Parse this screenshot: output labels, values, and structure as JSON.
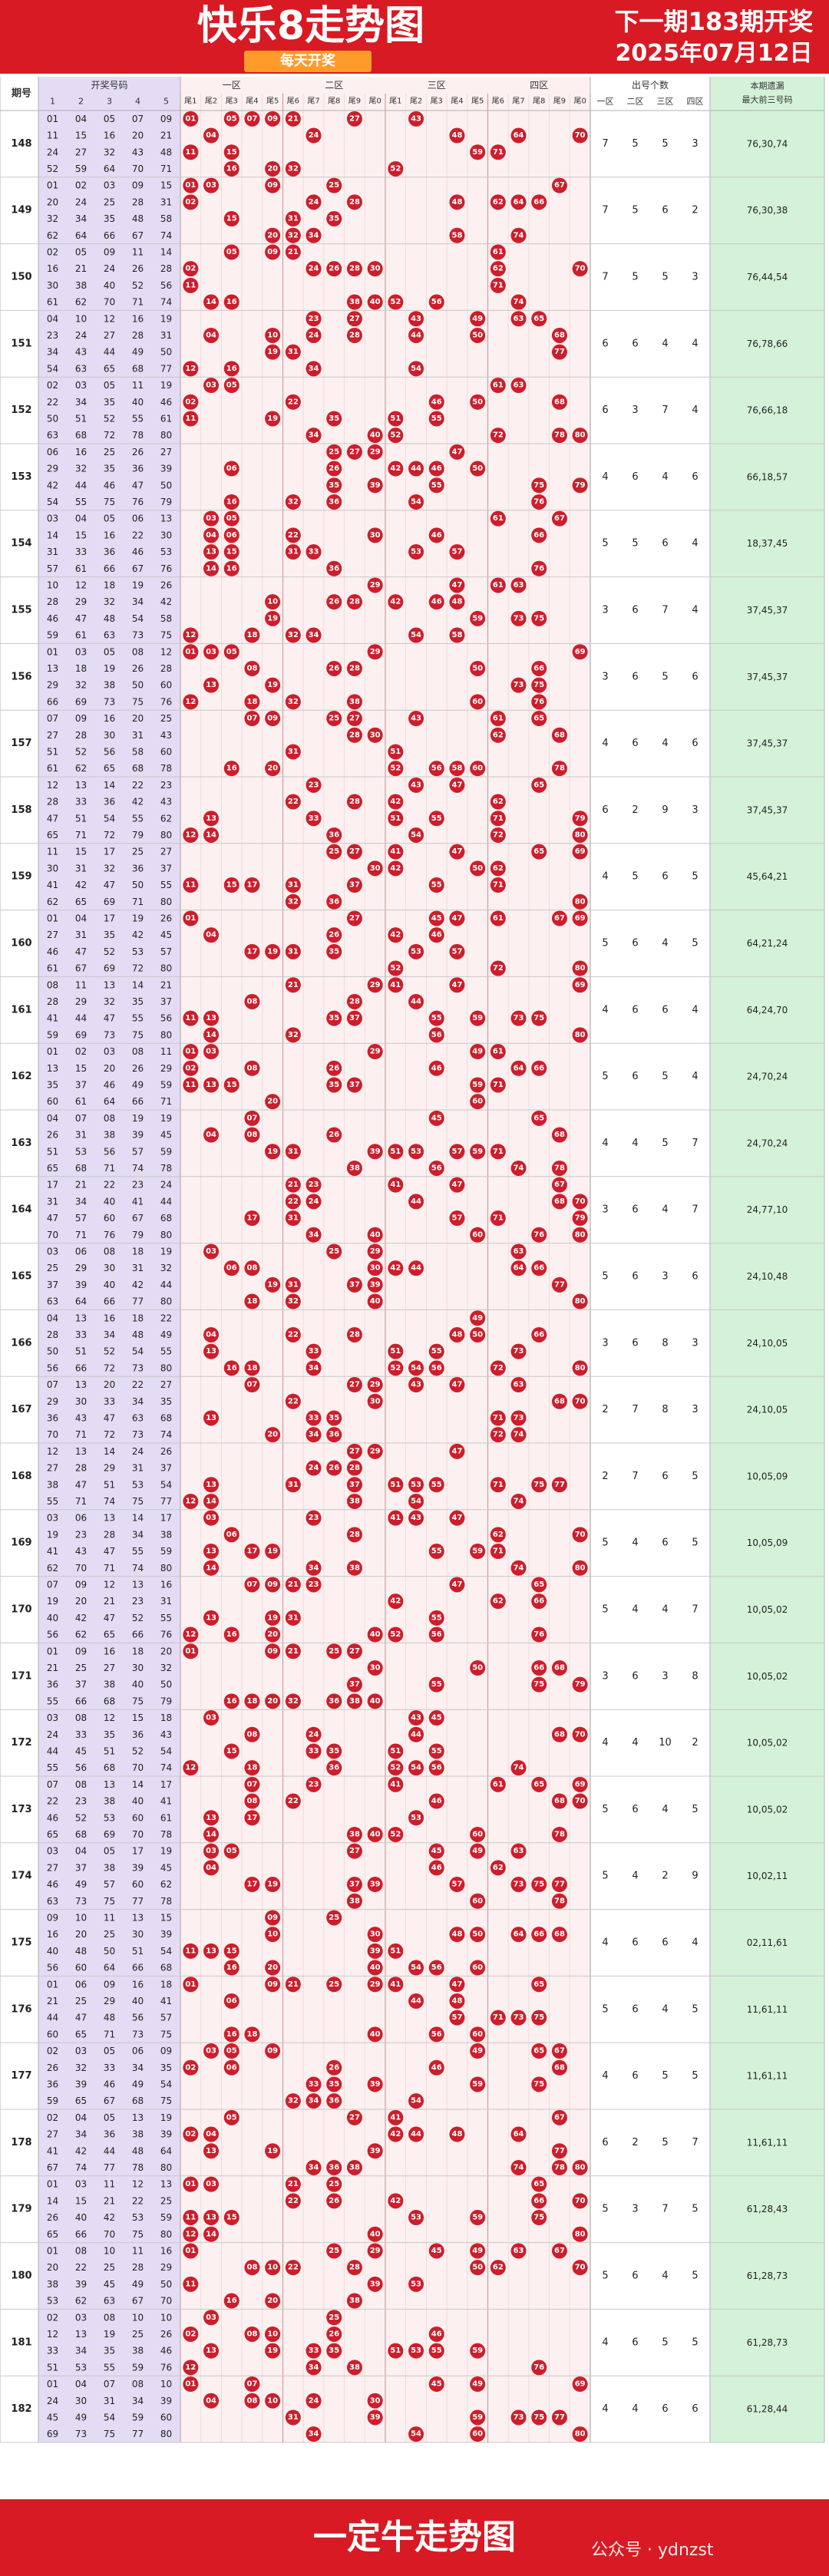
{
  "header": {
    "title": "快乐8走势图",
    "subtitle": "每天开奖",
    "next_issue": "下一期183期开奖",
    "date": "2025年07月12日"
  },
  "footer": {
    "title": "一定牛走势图",
    "watermark": "公众号 · ydnzst"
  },
  "table_headers": {
    "issue": "期号",
    "draw_numbers": "开奖号码",
    "draw_cols": [
      "1",
      "2",
      "3",
      "4",
      "5"
    ],
    "zones": [
      "一区",
      "二区",
      "三区",
      "四区"
    ],
    "tails": [
      "尾1",
      "尾2",
      "尾3",
      "尾4",
      "尾5",
      "尾6",
      "尾7",
      "尾8",
      "尾9",
      "尾0"
    ],
    "count_title": "出号个数",
    "count_cols": [
      "一区",
      "二区",
      "三区",
      "四区"
    ],
    "remain_title": "本期遗漏最大前三号码"
  },
  "colors": {
    "brand_red": "#d81a24",
    "ball": "#cc1e2b",
    "draw_bg": "#e3dcf4",
    "grid_bg": "#fdf0f0",
    "remain_bg": "#d4f2d8",
    "subtitle_bg": "#ff9b2b"
  },
  "chart_data": {
    "type": "table",
    "rows": [
      {
        "issue": "148",
        "numbers": [
          1,
          4,
          5,
          7,
          9,
          11,
          15,
          16,
          20,
          21,
          24,
          27,
          32,
          43,
          48,
          52,
          59,
          64,
          70,
          71
        ],
        "counts": [
          7,
          5,
          5,
          3
        ],
        "remain": "76,30,74"
      },
      {
        "issue": "149",
        "numbers": [
          1,
          2,
          3,
          9,
          15,
          20,
          24,
          25,
          28,
          31,
          32,
          34,
          35,
          48,
          58,
          62,
          64,
          66,
          67,
          74
        ],
        "counts": [
          7,
          5,
          6,
          2
        ],
        "remain": "76,30,38"
      },
      {
        "issue": "150",
        "numbers": [
          2,
          5,
          9,
          11,
          14,
          16,
          21,
          24,
          26,
          28,
          30,
          38,
          40,
          52,
          56,
          61,
          62,
          70,
          71,
          74
        ],
        "counts": [
          7,
          5,
          5,
          3
        ],
        "remain": "76,44,54"
      },
      {
        "issue": "151",
        "numbers": [
          4,
          10,
          12,
          16,
          19,
          23,
          24,
          27,
          28,
          31,
          34,
          43,
          44,
          49,
          50,
          54,
          63,
          65,
          68,
          77
        ],
        "counts": [
          6,
          6,
          4,
          4
        ],
        "remain": "76,78,66"
      },
      {
        "issue": "152",
        "numbers": [
          2,
          3,
          5,
          11,
          19,
          22,
          34,
          35,
          40,
          50,
          51,
          55,
          61,
          63,
          68,
          72,
          78,
          80,
          46,
          52
        ],
        "counts": [
          6,
          3,
          7,
          4
        ],
        "remain": "76,66,18"
      },
      {
        "issue": "153",
        "numbers": [
          6,
          16,
          25,
          26,
          29,
          35,
          27,
          32,
          36,
          39,
          42,
          44,
          46,
          47,
          50,
          54,
          55,
          75,
          76,
          79
        ],
        "counts": [
          4,
          6,
          4,
          6
        ],
        "remain": "66,18,57"
      },
      {
        "issue": "154",
        "numbers": [
          3,
          4,
          5,
          6,
          13,
          14,
          15,
          16,
          22,
          30,
          31,
          33,
          36,
          46,
          53,
          57,
          61,
          66,
          67,
          76
        ],
        "counts": [
          5,
          5,
          6,
          4
        ],
        "remain": "18,37,45"
      },
      {
        "issue": "155",
        "numbers": [
          10,
          12,
          18,
          19,
          26,
          28,
          29,
          32,
          34,
          42,
          46,
          47,
          48,
          54,
          58,
          59,
          61,
          63,
          73,
          75
        ],
        "counts": [
          3,
          6,
          7,
          4
        ],
        "remain": "37,45,37"
      },
      {
        "issue": "156",
        "numbers": [
          1,
          3,
          5,
          8,
          12,
          13,
          18,
          19,
          26,
          28,
          29,
          32,
          38,
          50,
          60,
          66,
          69,
          73,
          75,
          76
        ],
        "counts": [
          3,
          6,
          5,
          6
        ],
        "remain": "37,45,37"
      },
      {
        "issue": "157",
        "numbers": [
          7,
          9,
          16,
          20,
          25,
          27,
          28,
          30,
          31,
          43,
          51,
          52,
          56,
          58,
          60,
          61,
          62,
          65,
          68,
          78
        ],
        "counts": [
          4,
          6,
          4,
          6
        ],
        "remain": "37,45,37"
      },
      {
        "issue": "158",
        "numbers": [
          12,
          13,
          14,
          22,
          23,
          28,
          33,
          36,
          42,
          43,
          47,
          51,
          54,
          55,
          62,
          65,
          71,
          72,
          79,
          80
        ],
        "counts": [
          6,
          2,
          9,
          3
        ],
        "remain": "37,45,37"
      },
      {
        "issue": "159",
        "numbers": [
          11,
          15,
          17,
          25,
          27,
          30,
          31,
          32,
          36,
          37,
          41,
          42,
          47,
          50,
          55,
          62,
          65,
          69,
          71,
          80
        ],
        "counts": [
          4,
          5,
          6,
          5
        ],
        "remain": "45,64,21"
      },
      {
        "issue": "160",
        "numbers": [
          1,
          4,
          17,
          19,
          26,
          27,
          31,
          35,
          42,
          45,
          46,
          47,
          52,
          57,
          61,
          67,
          69,
          72,
          80,
          53
        ],
        "counts": [
          5,
          6,
          4,
          5
        ],
        "remain": "64,21,24"
      },
      {
        "issue": "161",
        "numbers": [
          8,
          11,
          14,
          21,
          28,
          29,
          35,
          37,
          41,
          44,
          47,
          55,
          56,
          59,
          69,
          73,
          75,
          80,
          32,
          13
        ],
        "counts": [
          4,
          6,
          6,
          4
        ],
        "remain": "64,24,70"
      },
      {
        "issue": "162",
        "numbers": [
          1,
          2,
          3,
          8,
          11,
          13,
          15,
          20,
          26,
          29,
          35,
          37,
          46,
          49,
          59,
          60,
          61,
          64,
          66,
          71
        ],
        "counts": [
          5,
          6,
          5,
          4
        ],
        "remain": "24,70,24"
      },
      {
        "issue": "163",
        "numbers": [
          4,
          7,
          8,
          19,
          26,
          31,
          38,
          39,
          45,
          51,
          53,
          56,
          57,
          59,
          65,
          68,
          71,
          74,
          78,
          19
        ],
        "counts": [
          4,
          4,
          5,
          7
        ],
        "remain": "24,70,24"
      },
      {
        "issue": "164",
        "numbers": [
          17,
          21,
          23,
          40,
          22,
          24,
          31,
          34,
          41,
          47,
          57,
          60,
          67,
          68,
          70,
          71,
          76,
          79,
          80,
          44
        ],
        "counts": [
          3,
          6,
          4,
          7
        ],
        "remain": "24,77,10"
      },
      {
        "issue": "165",
        "numbers": [
          3,
          6,
          8,
          18,
          19,
          25,
          29,
          30,
          31,
          32,
          37,
          39,
          40,
          42,
          44,
          63,
          64,
          66,
          77,
          80
        ],
        "counts": [
          5,
          6,
          3,
          6
        ],
        "remain": "24,10,48"
      },
      {
        "issue": "166",
        "numbers": [
          4,
          13,
          16,
          18,
          22,
          28,
          33,
          34,
          48,
          49,
          50,
          51,
          52,
          54,
          55,
          56,
          66,
          72,
          73,
          80
        ],
        "counts": [
          3,
          6,
          8,
          3
        ],
        "remain": "24,10,05"
      },
      {
        "issue": "167",
        "numbers": [
          7,
          13,
          20,
          22,
          27,
          29,
          30,
          33,
          34,
          35,
          36,
          43,
          47,
          63,
          68,
          70,
          71,
          72,
          73,
          74
        ],
        "counts": [
          2,
          7,
          8,
          3
        ],
        "remain": "24,10,05"
      },
      {
        "issue": "168",
        "numbers": [
          12,
          13,
          14,
          24,
          26,
          27,
          28,
          29,
          31,
          37,
          38,
          47,
          51,
          53,
          54,
          55,
          71,
          74,
          75,
          77
        ],
        "counts": [
          2,
          7,
          6,
          5
        ],
        "remain": "10,05,09"
      },
      {
        "issue": "169",
        "numbers": [
          3,
          6,
          13,
          14,
          17,
          19,
          23,
          28,
          34,
          38,
          41,
          43,
          47,
          55,
          59,
          62,
          70,
          71,
          74,
          80
        ],
        "counts": [
          5,
          4,
          6,
          5
        ],
        "remain": "10,05,09"
      },
      {
        "issue": "170",
        "numbers": [
          7,
          9,
          12,
          13,
          16,
          19,
          20,
          21,
          23,
          31,
          40,
          42,
          47,
          52,
          55,
          56,
          62,
          65,
          66,
          76
        ],
        "counts": [
          5,
          4,
          4,
          7
        ],
        "remain": "10,05,02"
      },
      {
        "issue": "171",
        "numbers": [
          1,
          9,
          16,
          20,
          21,
          25,
          27,
          30,
          32,
          36,
          37,
          38,
          40,
          50,
          55,
          66,
          68,
          75,
          79,
          18
        ],
        "counts": [
          3,
          6,
          3,
          8
        ],
        "remain": "10,05,02"
      },
      {
        "issue": "172",
        "numbers": [
          3,
          8,
          12,
          15,
          18,
          24,
          33,
          35,
          36,
          43,
          44,
          45,
          51,
          52,
          54,
          55,
          56,
          68,
          70,
          74
        ],
        "counts": [
          4,
          4,
          10,
          2
        ],
        "remain": "10,05,02"
      },
      {
        "issue": "173",
        "numbers": [
          7,
          8,
          13,
          14,
          17,
          23,
          38,
          40,
          41,
          46,
          52,
          53,
          60,
          61,
          65,
          68,
          69,
          70,
          78,
          22
        ],
        "counts": [
          5,
          6,
          4,
          5
        ],
        "remain": "10,05,02"
      },
      {
        "issue": "174",
        "numbers": [
          3,
          4,
          5,
          17,
          19,
          27,
          37,
          38,
          39,
          45,
          46,
          49,
          57,
          62,
          63,
          73,
          75,
          77,
          78,
          60
        ],
        "counts": [
          5,
          4,
          2,
          9
        ],
        "remain": "10,02,11"
      },
      {
        "issue": "175",
        "numbers": [
          9,
          10,
          11,
          13,
          15,
          16,
          20,
          25,
          30,
          39,
          40,
          48,
          50,
          51,
          54,
          56,
          60,
          64,
          66,
          68
        ],
        "counts": [
          4,
          6,
          6,
          4
        ],
        "remain": "02,11,61"
      },
      {
        "issue": "176",
        "numbers": [
          1,
          6,
          9,
          16,
          18,
          21,
          25,
          29,
          40,
          41,
          44,
          47,
          48,
          56,
          57,
          60,
          65,
          71,
          73,
          75
        ],
        "counts": [
          5,
          6,
          4,
          5
        ],
        "remain": "11,61,11"
      },
      {
        "issue": "177",
        "numbers": [
          2,
          3,
          5,
          6,
          9,
          26,
          32,
          33,
          34,
          35,
          36,
          39,
          46,
          49,
          54,
          59,
          65,
          67,
          68,
          75
        ],
        "counts": [
          4,
          6,
          5,
          5
        ],
        "remain": "11,61,11"
      },
      {
        "issue": "178",
        "numbers": [
          2,
          4,
          5,
          13,
          19,
          27,
          34,
          36,
          38,
          39,
          41,
          42,
          44,
          48,
          64,
          67,
          74,
          77,
          78,
          80
        ],
        "counts": [
          6,
          2,
          5,
          7
        ],
        "remain": "11,61,11"
      },
      {
        "issue": "179",
        "numbers": [
          1,
          3,
          11,
          12,
          13,
          14,
          15,
          21,
          22,
          25,
          26,
          40,
          42,
          53,
          59,
          65,
          66,
          70,
          75,
          80
        ],
        "counts": [
          5,
          3,
          7,
          5
        ],
        "remain": "61,28,43"
      },
      {
        "issue": "180",
        "numbers": [
          1,
          8,
          10,
          11,
          16,
          20,
          22,
          25,
          28,
          29,
          38,
          39,
          45,
          49,
          50,
          53,
          62,
          63,
          67,
          70
        ],
        "counts": [
          5,
          6,
          4,
          5
        ],
        "remain": "61,28,73"
      },
      {
        "issue": "181",
        "numbers": [
          3,
          8,
          10,
          12,
          2,
          10,
          13,
          19,
          25,
          26,
          33,
          34,
          35,
          38,
          46,
          51,
          53,
          55,
          59,
          76
        ],
        "counts": [
          4,
          6,
          5,
          5
        ],
        "remain": "61,28,73"
      },
      {
        "issue": "182",
        "numbers": [
          1,
          4,
          7,
          8,
          10,
          24,
          30,
          31,
          34,
          39,
          45,
          49,
          54,
          59,
          60,
          69,
          73,
          75,
          77,
          80
        ],
        "counts": [
          4,
          4,
          6,
          6
        ],
        "remain": "61,28,44"
      }
    ]
  }
}
